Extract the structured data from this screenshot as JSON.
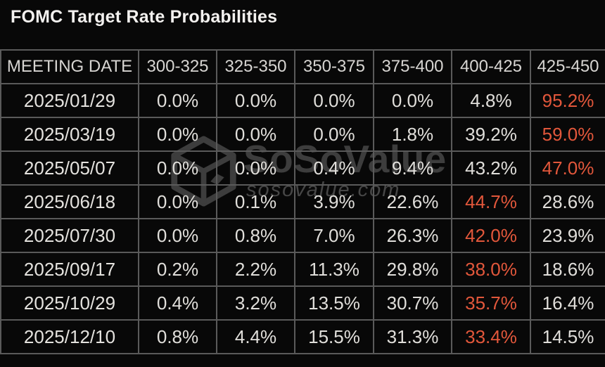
{
  "header": {
    "title": "FOMC Target Rate Probabilities"
  },
  "watermark": {
    "brand": "SoSoValue",
    "domain": "sosovalue.com",
    "logo": "sosovalue-cube-logo"
  },
  "colors": {
    "highlight_orange": "#e2573b",
    "cell_text": "#e0deda",
    "header_text": "#d7d5d2",
    "border_gray": "#5a5a5a",
    "background": "#080808",
    "watermark_gray": "#3d3d3d"
  },
  "chart_data": {
    "type": "table",
    "title": "FOMC Target Rate Probabilities",
    "columns": [
      "MEETING DATE",
      "300-325",
      "325-350",
      "350-375",
      "375-400",
      "400-425",
      "425-450"
    ],
    "rows": [
      {
        "meeting_date": "2025/01/29",
        "values": [
          "0.0%",
          "0.0%",
          "0.0%",
          "0.0%",
          "4.8%",
          "95.2%"
        ],
        "highlight_index": 5
      },
      {
        "meeting_date": "2025/03/19",
        "values": [
          "0.0%",
          "0.0%",
          "0.0%",
          "1.8%",
          "39.2%",
          "59.0%"
        ],
        "highlight_index": 5
      },
      {
        "meeting_date": "2025/05/07",
        "values": [
          "0.0%",
          "0.0%",
          "0.4%",
          "9.4%",
          "43.2%",
          "47.0%"
        ],
        "highlight_index": 5
      },
      {
        "meeting_date": "2025/06/18",
        "values": [
          "0.0%",
          "0.1%",
          "3.9%",
          "22.6%",
          "44.7%",
          "28.6%"
        ],
        "highlight_index": 4
      },
      {
        "meeting_date": "2025/07/30",
        "values": [
          "0.0%",
          "0.8%",
          "7.0%",
          "26.3%",
          "42.0%",
          "23.9%"
        ],
        "highlight_index": 4
      },
      {
        "meeting_date": "2025/09/17",
        "values": [
          "0.2%",
          "2.2%",
          "11.3%",
          "29.8%",
          "38.0%",
          "18.6%"
        ],
        "highlight_index": 4
      },
      {
        "meeting_date": "2025/10/29",
        "values": [
          "0.4%",
          "3.2%",
          "13.5%",
          "30.7%",
          "35.7%",
          "16.4%"
        ],
        "highlight_index": 4
      },
      {
        "meeting_date": "2025/12/10",
        "values": [
          "0.8%",
          "4.4%",
          "15.5%",
          "31.3%",
          "33.4%",
          "14.5%"
        ],
        "highlight_index": 4
      }
    ]
  }
}
